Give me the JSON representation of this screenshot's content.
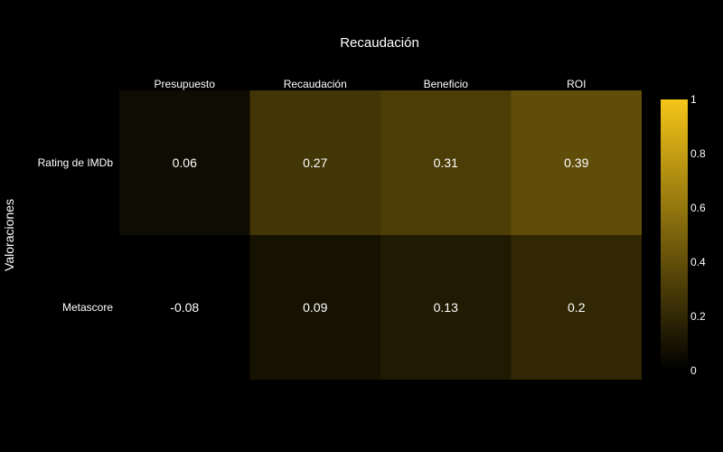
{
  "chart_data": {
    "type": "heatmap",
    "title": "Recaudación",
    "xlabel": "",
    "ylabel": "Valoraciones",
    "x_categories": [
      "Presupuesto",
      "Recaudación",
      "Beneficio",
      "ROI"
    ],
    "y_categories": [
      "Rating de IMDb",
      "Metascore"
    ],
    "values": [
      [
        0.06,
        0.27,
        0.31,
        0.39
      ],
      [
        -0.08,
        0.09,
        0.13,
        0.2
      ]
    ],
    "value_labels": [
      [
        "0.06",
        "0.27",
        "0.31",
        "0.39"
      ],
      [
        "-0.08",
        "0.09",
        "0.13",
        "0.2"
      ]
    ],
    "x_axis_position": "top",
    "grid": false,
    "colorscale": {
      "range": [
        0,
        1
      ],
      "ticks": [
        "0",
        "0.2",
        "0.4",
        "0.6",
        "0.8",
        "1"
      ],
      "low_color": "#000000",
      "high_color": "#f5c518"
    }
  }
}
